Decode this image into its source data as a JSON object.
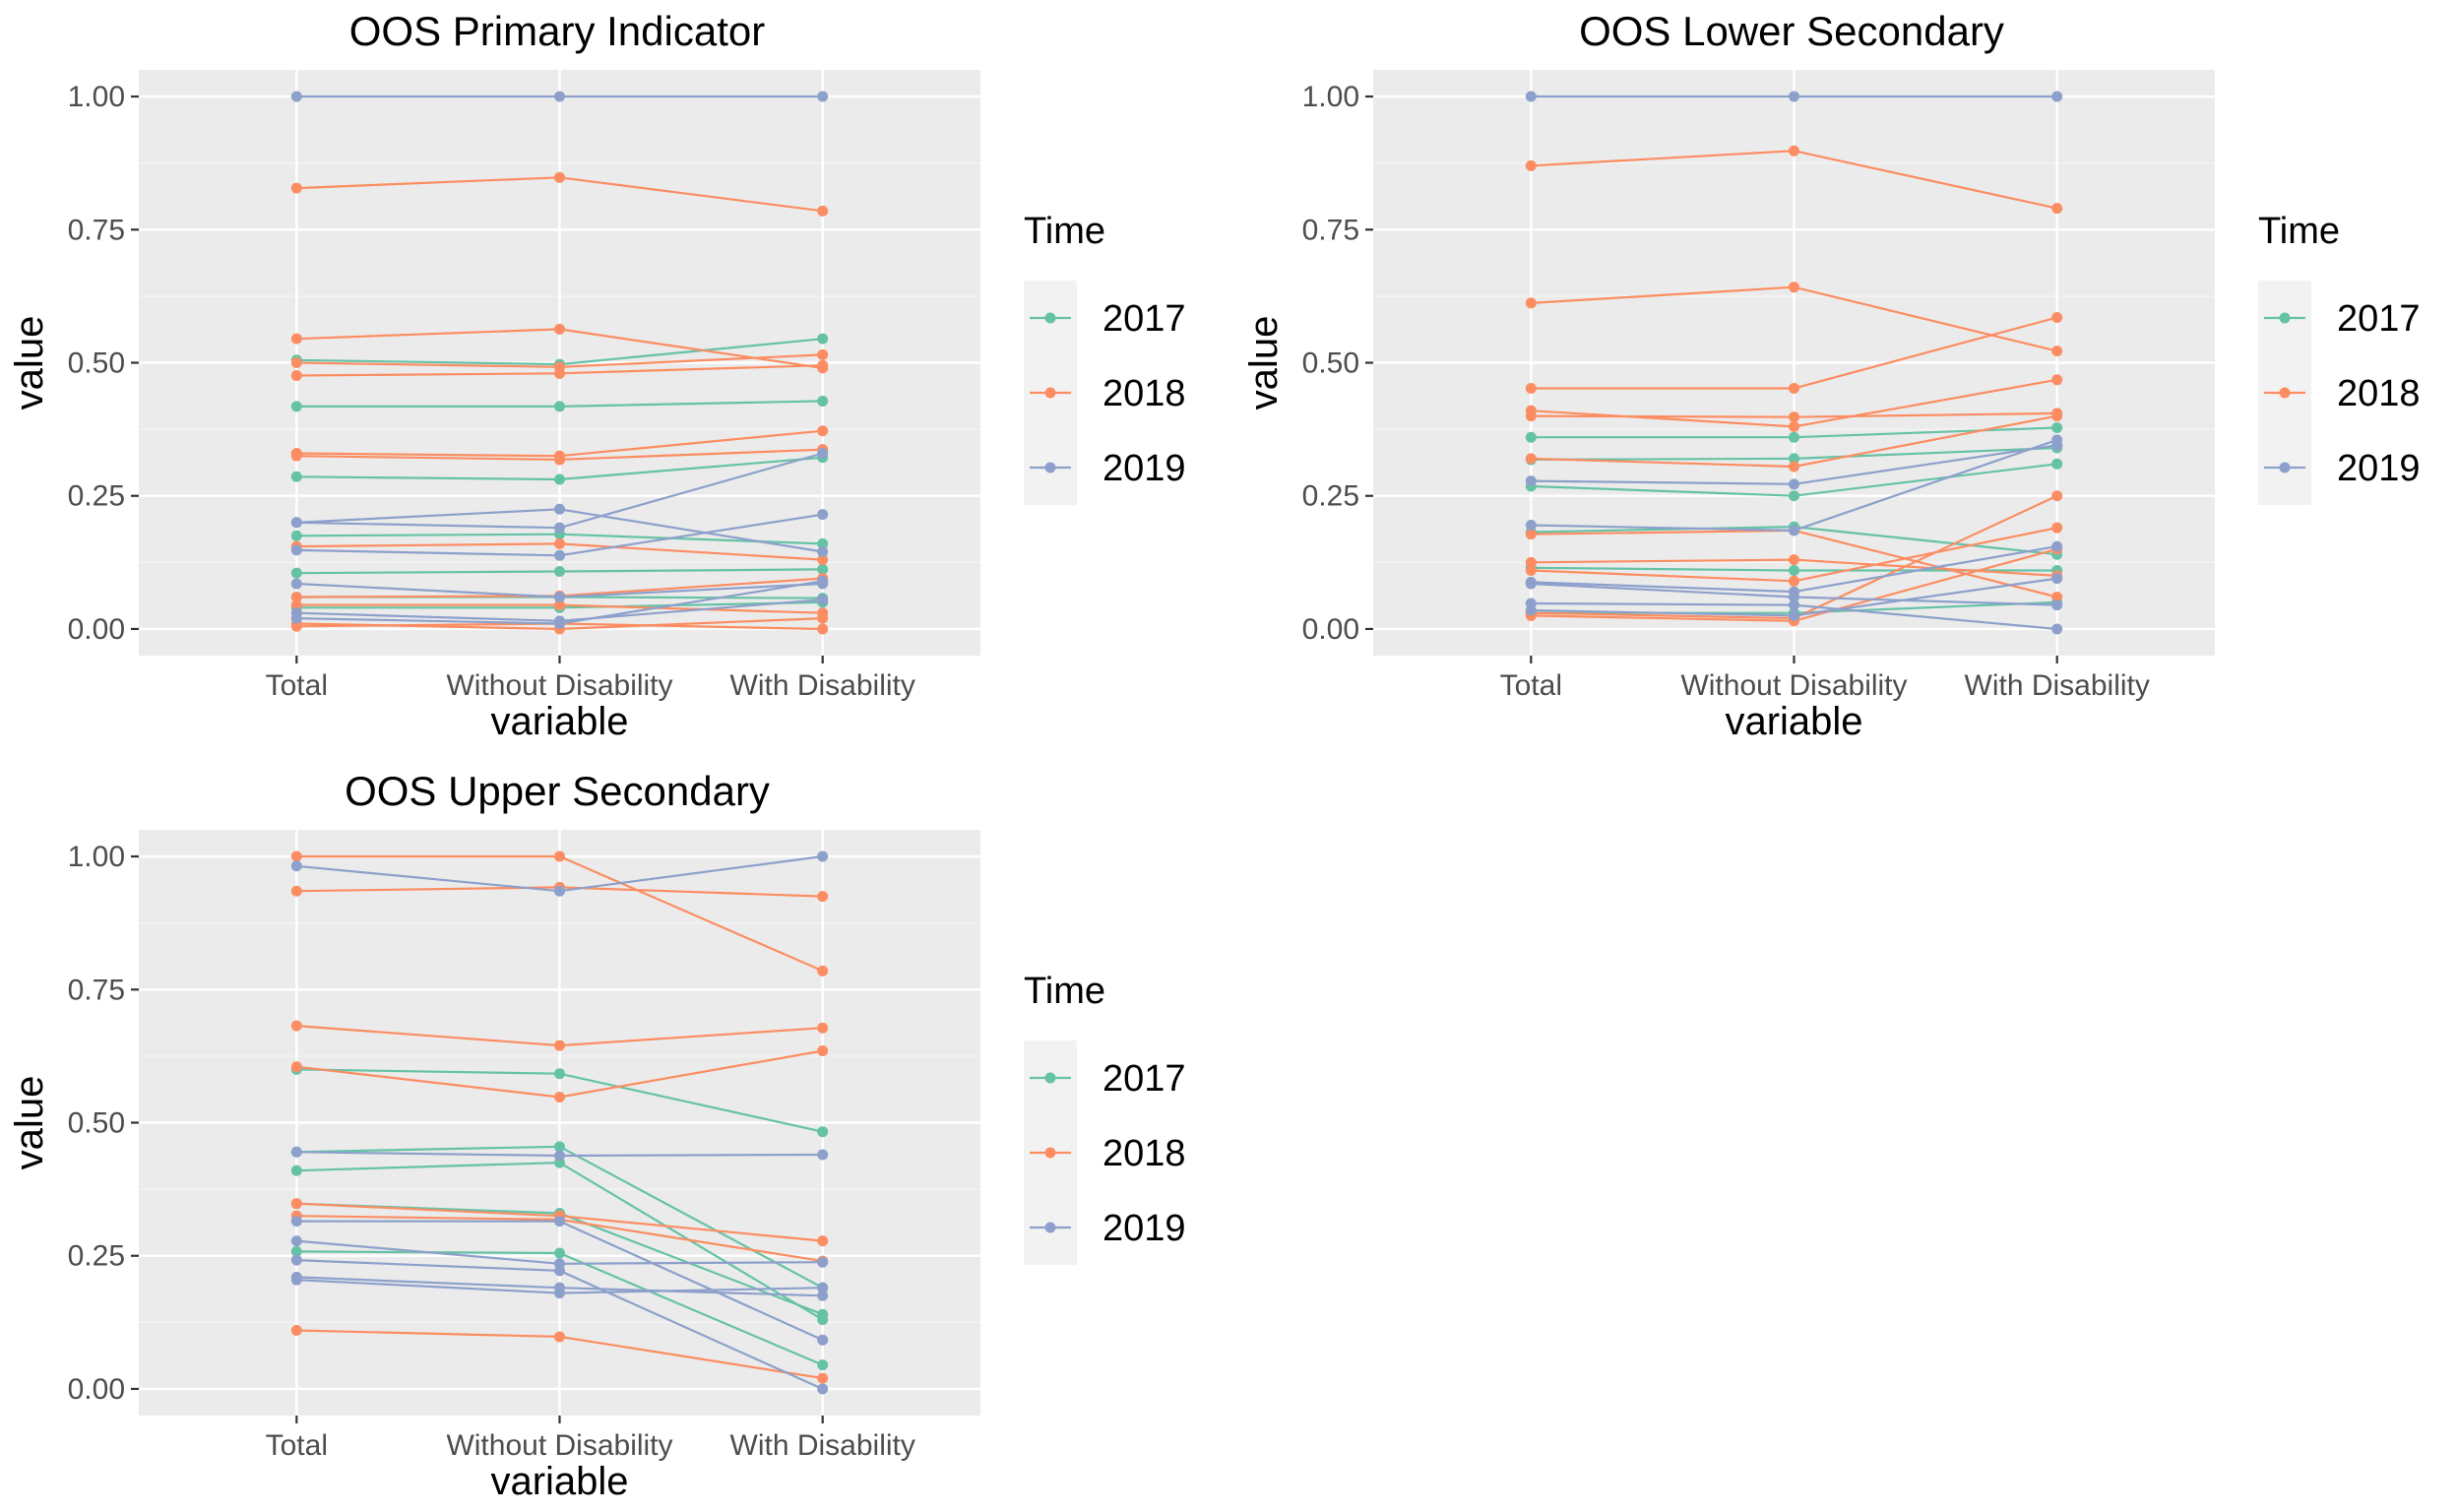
{
  "colors": {
    "2017": "#66c2a5",
    "2018": "#fc8d62",
    "2019": "#8da0cb"
  },
  "chart_data": [
    {
      "type": "line",
      "title": "OOS Primary Indicator",
      "xlabel": "variable",
      "ylabel": "value",
      "categories": [
        "Total",
        "Without Disability",
        "With Disability"
      ],
      "ylim": [
        -0.05,
        1.05
      ],
      "yticks": [
        "0.00",
        "0.25",
        "0.50",
        "0.75",
        "1.00"
      ],
      "grid": true,
      "legend": {
        "title": "Time",
        "position": "right",
        "entries": [
          "2017",
          "2018",
          "2019"
        ]
      },
      "series": [
        {
          "group": "2017",
          "values": [
            0.505,
            0.497,
            0.545
          ]
        },
        {
          "group": "2017",
          "values": [
            0.418,
            0.418,
            0.428
          ]
        },
        {
          "group": "2017",
          "values": [
            0.286,
            0.281,
            0.322
          ]
        },
        {
          "group": "2017",
          "values": [
            0.175,
            0.178,
            0.16
          ]
        },
        {
          "group": "2017",
          "values": [
            0.105,
            0.108,
            0.112
          ]
        },
        {
          "group": "2017",
          "values": [
            0.06,
            0.06,
            0.058
          ]
        },
        {
          "group": "2017",
          "values": [
            0.04,
            0.04,
            0.05
          ]
        },
        {
          "group": "2018",
          "values": [
            0.828,
            0.848,
            0.785
          ]
        },
        {
          "group": "2018",
          "values": [
            0.545,
            0.563,
            0.49
          ]
        },
        {
          "group": "2018",
          "values": [
            0.5,
            0.492,
            0.515
          ]
        },
        {
          "group": "2018",
          "values": [
            0.476,
            0.48,
            0.495
          ]
        },
        {
          "group": "2018",
          "values": [
            0.33,
            0.325,
            0.372
          ]
        },
        {
          "group": "2018",
          "values": [
            0.325,
            0.318,
            0.337
          ]
        },
        {
          "group": "2018",
          "values": [
            0.155,
            0.16,
            0.13
          ]
        },
        {
          "group": "2018",
          "values": [
            0.06,
            0.062,
            0.095
          ]
        },
        {
          "group": "2018",
          "values": [
            0.045,
            0.045,
            0.03
          ]
        },
        {
          "group": "2018",
          "values": [
            0.01,
            0.0,
            0.02
          ]
        },
        {
          "group": "2018",
          "values": [
            0.005,
            0.01,
            0.0
          ]
        },
        {
          "group": "2019",
          "values": [
            1.0,
            1.0,
            1.0
          ]
        },
        {
          "group": "2019",
          "values": [
            0.2,
            0.225,
            0.145
          ]
        },
        {
          "group": "2019",
          "values": [
            0.2,
            0.19,
            0.33
          ]
        },
        {
          "group": "2019",
          "values": [
            0.148,
            0.138,
            0.215
          ]
        },
        {
          "group": "2019",
          "values": [
            0.085,
            0.06,
            0.085
          ]
        },
        {
          "group": "2019",
          "values": [
            0.03,
            0.015,
            0.055
          ]
        },
        {
          "group": "2019",
          "values": [
            0.02,
            0.01,
            0.09
          ]
        }
      ]
    },
    {
      "type": "line",
      "title": "OOS Lower Secondary",
      "xlabel": "variable",
      "ylabel": "value",
      "categories": [
        "Total",
        "Without Disability",
        "With Disability"
      ],
      "ylim": [
        -0.05,
        1.05
      ],
      "yticks": [
        "0.00",
        "0.25",
        "0.50",
        "0.75",
        "1.00"
      ],
      "grid": true,
      "legend": {
        "title": "Time",
        "position": "right",
        "entries": [
          "2017",
          "2018",
          "2019"
        ]
      },
      "series": [
        {
          "group": "2017",
          "values": [
            0.36,
            0.36,
            0.378
          ]
        },
        {
          "group": "2017",
          "values": [
            0.318,
            0.32,
            0.34
          ]
        },
        {
          "group": "2017",
          "values": [
            0.268,
            0.25,
            0.31
          ]
        },
        {
          "group": "2017",
          "values": [
            0.182,
            0.192,
            0.14
          ]
        },
        {
          "group": "2017",
          "values": [
            0.115,
            0.11,
            0.11
          ]
        },
        {
          "group": "2017",
          "values": [
            0.03,
            0.03,
            0.05
          ]
        },
        {
          "group": "2018",
          "values": [
            0.87,
            0.898,
            0.79
          ]
        },
        {
          "group": "2018",
          "values": [
            0.612,
            0.642,
            0.522
          ]
        },
        {
          "group": "2018",
          "values": [
            0.452,
            0.452,
            0.585
          ]
        },
        {
          "group": "2018",
          "values": [
            0.41,
            0.38,
            0.468
          ]
        },
        {
          "group": "2018",
          "values": [
            0.4,
            0.398,
            0.405
          ]
        },
        {
          "group": "2018",
          "values": [
            0.32,
            0.305,
            0.4
          ]
        },
        {
          "group": "2018",
          "values": [
            0.178,
            0.185,
            0.06
          ]
        },
        {
          "group": "2018",
          "values": [
            0.125,
            0.13,
            0.1
          ]
        },
        {
          "group": "2018",
          "values": [
            0.11,
            0.09,
            0.19
          ]
        },
        {
          "group": "2018",
          "values": [
            0.03,
            0.02,
            0.25
          ]
        },
        {
          "group": "2018",
          "values": [
            0.025,
            0.015,
            0.15
          ]
        },
        {
          "group": "2019",
          "values": [
            1.0,
            1.0,
            1.0
          ]
        },
        {
          "group": "2019",
          "values": [
            0.278,
            0.272,
            0.345
          ]
        },
        {
          "group": "2019",
          "values": [
            0.195,
            0.185,
            0.355
          ]
        },
        {
          "group": "2019",
          "values": [
            0.088,
            0.07,
            0.155
          ]
        },
        {
          "group": "2019",
          "values": [
            0.085,
            0.06,
            0.045
          ]
        },
        {
          "group": "2019",
          "values": [
            0.048,
            0.045,
            0.0
          ]
        },
        {
          "group": "2019",
          "values": [
            0.035,
            0.025,
            0.095
          ]
        }
      ]
    },
    {
      "type": "line",
      "title": "OOS Upper Secondary",
      "xlabel": "variable",
      "ylabel": "value",
      "categories": [
        "Total",
        "Without Disability",
        "With Disability"
      ],
      "ylim": [
        -0.05,
        1.05
      ],
      "yticks": [
        "0.00",
        "0.25",
        "0.50",
        "0.75",
        "1.00"
      ],
      "grid": true,
      "legend": {
        "title": "Time",
        "position": "right",
        "entries": [
          "2017",
          "2018",
          "2019"
        ]
      },
      "series": [
        {
          "group": "2017",
          "values": [
            0.6,
            0.592,
            0.483
          ]
        },
        {
          "group": "2017",
          "values": [
            0.445,
            0.455,
            0.19
          ]
        },
        {
          "group": "2017",
          "values": [
            0.41,
            0.425,
            0.13
          ]
        },
        {
          "group": "2017",
          "values": [
            0.348,
            0.33,
            0.14
          ]
        },
        {
          "group": "2017",
          "values": [
            0.258,
            0.255,
            0.045
          ]
        },
        {
          "group": "2018",
          "values": [
            1.0,
            1.0,
            0.785
          ]
        },
        {
          "group": "2018",
          "values": [
            0.935,
            0.942,
            0.925
          ]
        },
        {
          "group": "2018",
          "values": [
            0.682,
            0.645,
            0.678
          ]
        },
        {
          "group": "2018",
          "values": [
            0.605,
            0.548,
            0.635
          ]
        },
        {
          "group": "2018",
          "values": [
            0.348,
            0.325,
            0.278
          ]
        },
        {
          "group": "2018",
          "values": [
            0.325,
            0.318,
            0.24
          ]
        },
        {
          "group": "2018",
          "values": [
            0.11,
            0.098,
            0.02
          ]
        },
        {
          "group": "2019",
          "values": [
            0.982,
            0.935,
            1.0
          ]
        },
        {
          "group": "2019",
          "values": [
            0.445,
            0.438,
            0.44
          ]
        },
        {
          "group": "2019",
          "values": [
            0.315,
            0.315,
            0.092
          ]
        },
        {
          "group": "2019",
          "values": [
            0.278,
            0.235,
            0.238
          ]
        },
        {
          "group": "2019",
          "values": [
            0.242,
            0.222,
            0.0
          ]
        },
        {
          "group": "2019",
          "values": [
            0.21,
            0.19,
            0.175
          ]
        },
        {
          "group": "2019",
          "values": [
            0.205,
            0.18,
            0.19
          ]
        }
      ]
    }
  ]
}
